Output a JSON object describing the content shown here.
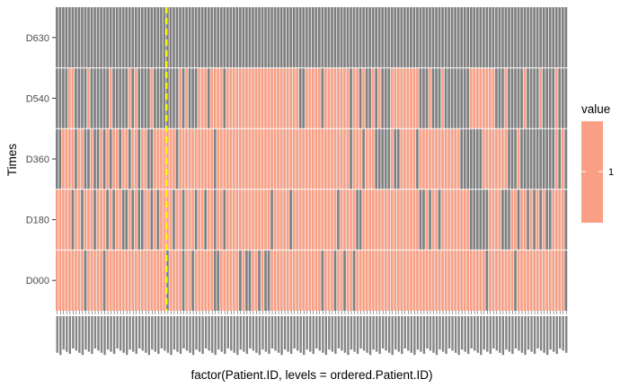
{
  "chart_data": {
    "type": "heatmap",
    "title": "",
    "xlabel": "factor(Patient.ID, levels = ordered.Patient.ID)",
    "ylabel": "Times",
    "rows": [
      "D000",
      "D180",
      "D360",
      "D540",
      "D630"
    ],
    "n_columns": 162,
    "x_tick_labels_legible": false,
    "present_color": "#fa9f84",
    "absent_color": "#7f7f7f",
    "panel_background": "#ebebeb",
    "reference_line": {
      "color": "#ffff00",
      "style": "dashed",
      "after_column": 35
    },
    "legend": {
      "title": "value",
      "label": "1",
      "color": "#fa9f84",
      "placement": "right"
    },
    "present": {
      "D000": [
        1,
        1,
        1,
        1,
        1,
        1,
        1,
        1,
        1,
        0,
        1,
        1,
        1,
        1,
        1,
        0,
        1,
        1,
        1,
        1,
        1,
        1,
        1,
        1,
        1,
        1,
        1,
        1,
        1,
        1,
        1,
        1,
        1,
        1,
        1,
        0,
        1,
        1,
        1,
        1,
        0,
        1,
        1,
        0,
        1,
        1,
        1,
        1,
        1,
        1,
        0,
        0,
        1,
        1,
        1,
        1,
        1,
        1,
        0,
        1,
        0,
        0,
        1,
        1,
        0,
        1,
        0,
        0,
        1,
        1,
        1,
        1,
        1,
        1,
        1,
        1,
        1,
        1,
        1,
        1,
        1,
        1,
        1,
        1,
        0,
        1,
        1,
        1,
        0,
        1,
        1,
        0,
        1,
        1,
        0,
        1,
        1,
        1,
        1,
        1,
        1,
        1,
        1,
        1,
        1,
        1,
        1,
        1,
        1,
        1,
        1,
        1,
        1,
        1,
        1,
        1,
        1,
        1,
        1,
        1,
        1,
        1,
        1,
        1,
        1,
        1,
        1,
        1,
        1,
        1,
        1,
        1,
        1,
        1,
        1,
        1,
        0,
        1,
        1,
        1,
        1,
        1,
        1,
        1,
        1,
        0,
        1,
        1,
        1,
        1,
        1,
        1,
        1,
        1,
        1,
        1,
        1,
        1,
        1,
        1,
        1,
        0
      ],
      "D180": [
        1,
        1,
        1,
        1,
        1,
        0,
        1,
        1,
        0,
        1,
        1,
        1,
        0,
        1,
        1,
        1,
        0,
        1,
        0,
        1,
        1,
        0,
        0,
        1,
        0,
        1,
        0,
        0,
        1,
        1,
        0,
        1,
        0,
        1,
        1,
        1,
        1,
        0,
        1,
        1,
        0,
        1,
        1,
        1,
        0,
        1,
        1,
        0,
        1,
        1,
        0,
        1,
        1,
        0,
        1,
        1,
        1,
        1,
        1,
        1,
        1,
        1,
        1,
        1,
        1,
        1,
        1,
        1,
        0,
        1,
        1,
        1,
        1,
        1,
        0,
        1,
        1,
        1,
        1,
        1,
        1,
        1,
        1,
        1,
        1,
        1,
        1,
        1,
        1,
        0,
        1,
        1,
        1,
        1,
        1,
        0,
        0,
        1,
        1,
        1,
        1,
        1,
        1,
        1,
        1,
        1,
        1,
        1,
        1,
        1,
        1,
        1,
        1,
        1,
        1,
        0,
        0,
        1,
        0,
        1,
        1,
        0,
        1,
        1,
        1,
        1,
        1,
        1,
        1,
        1,
        1,
        0,
        0,
        0,
        0,
        0,
        0,
        1,
        1,
        1,
        1,
        0,
        0,
        0,
        1,
        1,
        0,
        1,
        1,
        0,
        1,
        0,
        1,
        0,
        1,
        0,
        0,
        1,
        1,
        1,
        1,
        0
      ],
      "D360": [
        0,
        0,
        1,
        1,
        1,
        1,
        0,
        1,
        1,
        0,
        0,
        1,
        0,
        0,
        1,
        0,
        1,
        0,
        1,
        1,
        0,
        1,
        1,
        0,
        1,
        1,
        0,
        1,
        1,
        0,
        0,
        1,
        1,
        1,
        1,
        1,
        1,
        1,
        0,
        1,
        1,
        1,
        1,
        1,
        1,
        1,
        1,
        1,
        1,
        1,
        0,
        1,
        1,
        1,
        1,
        1,
        1,
        1,
        1,
        1,
        1,
        1,
        1,
        1,
        1,
        1,
        1,
        1,
        1,
        1,
        1,
        1,
        1,
        1,
        1,
        1,
        1,
        1,
        1,
        1,
        1,
        1,
        1,
        1,
        1,
        1,
        1,
        1,
        1,
        1,
        1,
        1,
        1,
        0,
        1,
        1,
        1,
        0,
        1,
        1,
        1,
        0,
        0,
        0,
        0,
        0,
        1,
        0,
        0,
        1,
        1,
        1,
        1,
        1,
        0,
        1,
        1,
        1,
        1,
        1,
        1,
        1,
        1,
        1,
        1,
        1,
        1,
        1,
        0,
        0,
        0,
        0,
        0,
        0,
        0,
        1,
        1,
        1,
        1,
        1,
        1,
        1,
        1,
        0,
        0,
        0,
        1,
        0,
        0,
        0,
        0,
        0,
        0,
        0,
        0,
        0,
        0,
        0,
        1,
        0,
        1,
        0
      ],
      "D540": [
        0,
        0,
        0,
        0,
        1,
        1,
        0,
        0,
        0,
        0,
        1,
        0,
        0,
        0,
        0,
        0,
        0,
        1,
        0,
        0,
        0,
        0,
        0,
        1,
        0,
        1,
        0,
        0,
        0,
        0,
        1,
        0,
        0,
        0,
        0,
        0,
        0,
        0,
        0,
        1,
        0,
        1,
        0,
        0,
        0,
        1,
        1,
        1,
        0,
        1,
        1,
        1,
        1,
        0,
        1,
        1,
        1,
        1,
        1,
        1,
        1,
        1,
        1,
        1,
        1,
        1,
        1,
        1,
        1,
        1,
        1,
        1,
        1,
        1,
        1,
        1,
        1,
        0,
        0,
        1,
        1,
        1,
        1,
        1,
        0,
        1,
        1,
        1,
        1,
        1,
        1,
        1,
        1,
        0,
        1,
        1,
        0,
        1,
        0,
        0,
        1,
        0,
        1,
        0,
        0,
        0,
        1,
        1,
        1,
        1,
        1,
        1,
        1,
        1,
        1,
        0,
        0,
        0,
        1,
        0,
        0,
        0,
        1,
        0,
        0,
        0,
        0,
        0,
        0,
        0,
        0,
        1,
        1,
        1,
        1,
        1,
        1,
        1,
        1,
        0,
        0,
        0,
        1,
        0,
        0,
        0,
        0,
        0,
        1,
        0,
        0,
        0,
        0,
        1,
        0,
        0,
        0,
        0,
        1,
        0,
        0,
        0
      ],
      "D630": [
        0,
        0,
        0,
        0,
        0,
        0,
        0,
        0,
        0,
        0,
        0,
        0,
        0,
        0,
        0,
        0,
        0,
        0,
        0,
        0,
        0,
        0,
        0,
        0,
        0,
        0,
        0,
        0,
        0,
        0,
        0,
        0,
        0,
        0,
        0,
        0,
        0,
        0,
        0,
        0,
        0,
        0,
        0,
        0,
        0,
        0,
        0,
        0,
        0,
        0,
        0,
        0,
        0,
        0,
        0,
        0,
        0,
        0,
        0,
        0,
        0,
        0,
        0,
        0,
        0,
        0,
        0,
        0,
        0,
        0,
        0,
        0,
        0,
        0,
        0,
        0,
        0,
        0,
        0,
        0,
        0,
        0,
        0,
        0,
        0,
        0,
        0,
        0,
        0,
        0,
        0,
        0,
        0,
        0,
        0,
        0,
        0,
        0,
        0,
        0,
        0,
        0,
        0,
        0,
        0,
        0,
        0,
        0,
        0,
        0,
        0,
        0,
        0,
        0,
        0,
        0,
        0,
        0,
        0,
        0,
        0,
        0,
        0,
        0,
        0,
        0,
        0,
        0,
        0,
        0,
        0,
        0,
        0,
        0,
        0,
        0,
        0,
        0,
        0,
        0,
        0,
        0,
        0,
        0,
        0,
        0,
        0,
        0,
        0,
        0,
        0,
        0,
        0,
        0,
        0,
        0,
        0,
        0,
        0,
        0,
        0,
        0
      ]
    }
  }
}
